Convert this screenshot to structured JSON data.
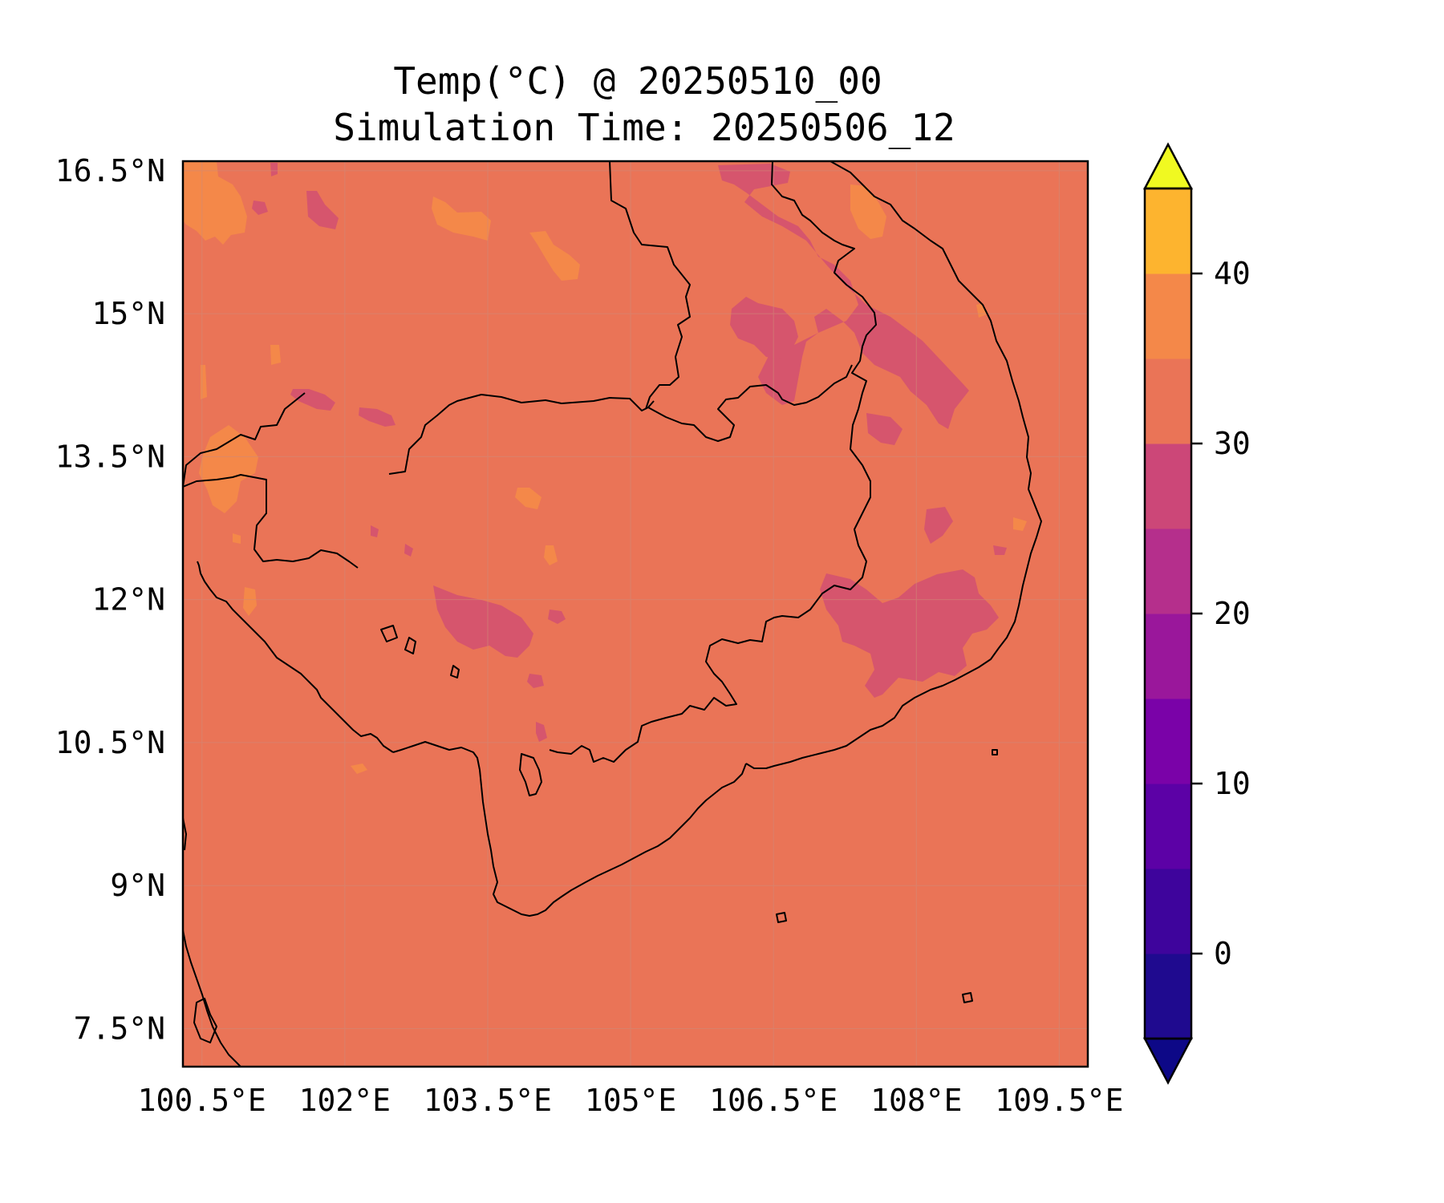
{
  "title": {
    "line1": "Temp(°C) @ 20250510_00",
    "line2": "Simulation Time: 20250506_12"
  },
  "map": {
    "region": "Cambodia and surrounding Southeast Asia",
    "lon_range": [
      100.3,
      109.8
    ],
    "lat_range": [
      7.1,
      16.6
    ],
    "background_field_color": "#ea7457",
    "gridlines": true,
    "x_ticks": [
      {
        "value": 100.5,
        "label": "100.5°E"
      },
      {
        "value": 102,
        "label": "102°E"
      },
      {
        "value": 103.5,
        "label": "103.5°E"
      },
      {
        "value": 105,
        "label": "105°E"
      },
      {
        "value": 106.5,
        "label": "106.5°E"
      },
      {
        "value": 108,
        "label": "108°E"
      },
      {
        "value": 109.5,
        "label": "109.5°E"
      }
    ],
    "y_ticks": [
      {
        "value": 16.5,
        "label": "16.5°N"
      },
      {
        "value": 15,
        "label": "15°N"
      },
      {
        "value": 13.5,
        "label": "13.5°N"
      },
      {
        "value": 12,
        "label": "12°N"
      },
      {
        "value": 10.5,
        "label": "10.5°N"
      },
      {
        "value": 9,
        "label": "9°N"
      },
      {
        "value": 7.5,
        "label": "7.5°N"
      }
    ]
  },
  "colorbar": {
    "extend": "both",
    "levels": [
      -5,
      0,
      5,
      10,
      15,
      20,
      25,
      30,
      35,
      40,
      45
    ],
    "colors": [
      "#1f0a8f",
      "#3e049c",
      "#5c01a6",
      "#7a02a8",
      "#9a179b",
      "#b52f8c",
      "#cc4778",
      "#ea7457",
      "#f48849",
      "#fdb42f",
      "#f0f921"
    ],
    "under_color": "#0d0887",
    "over_color": "#f0f921",
    "tick_labels": [
      {
        "value": 0,
        "label": "0"
      },
      {
        "value": 10,
        "label": "10"
      },
      {
        "value": 20,
        "label": "20"
      },
      {
        "value": 30,
        "label": "30"
      },
      {
        "value": 40,
        "label": "40"
      }
    ]
  }
}
